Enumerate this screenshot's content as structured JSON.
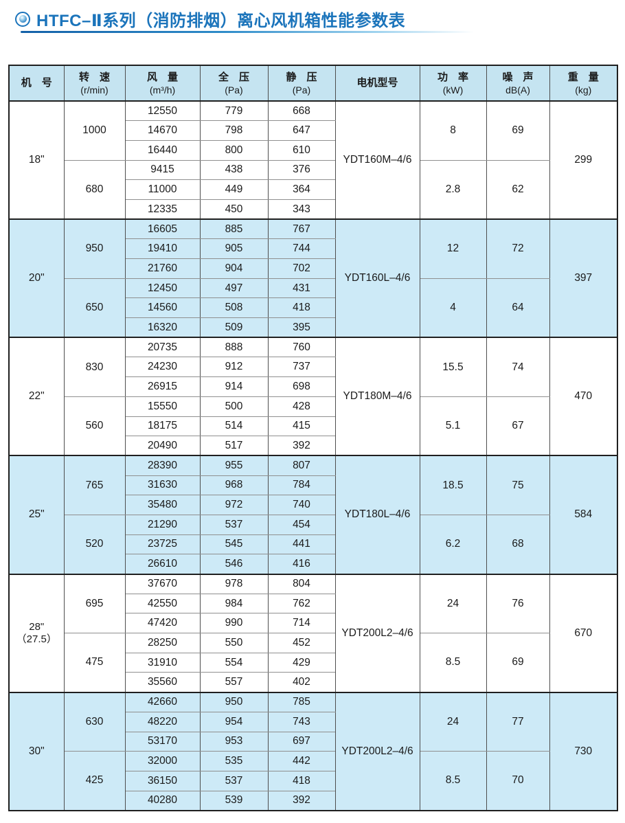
{
  "page": {
    "title": "HTFC–Ⅱ系列（消防排烟）离心风机箱性能参数表",
    "accent_color": "#1b74bb",
    "header_bg": "#c5e4f1",
    "shaded_row_bg": "#cdeaf7"
  },
  "table": {
    "headers": [
      {
        "line1": "机　号",
        "line2": ""
      },
      {
        "line1": "转　速",
        "line2": "(r/min)"
      },
      {
        "line1": "风　量",
        "line2": "(m³/h)"
      },
      {
        "line1": "全　压",
        "line2": "(Pa)"
      },
      {
        "line1": "静　压",
        "line2": "(Pa)"
      },
      {
        "line1": "电机型号",
        "line2": ""
      },
      {
        "line1": "功　率",
        "line2": "(kW)"
      },
      {
        "line1": "噪　声",
        "line2": "dB(A)"
      },
      {
        "line1": "重　量",
        "line2": "(kg)"
      }
    ],
    "sections": [
      {
        "size": "18\"",
        "size_note": "",
        "shaded": false,
        "motor": "YDT160M–4/6",
        "weight": "299",
        "groups": [
          {
            "speed": "1000",
            "power": "8",
            "noise": "69",
            "rows": [
              [
                "12550",
                "779",
                "668"
              ],
              [
                "14670",
                "798",
                "647"
              ],
              [
                "16440",
                "800",
                "610"
              ]
            ]
          },
          {
            "speed": "680",
            "power": "2.8",
            "noise": "62",
            "rows": [
              [
                "9415",
                "438",
                "376"
              ],
              [
                "11000",
                "449",
                "364"
              ],
              [
                "12335",
                "450",
                "343"
              ]
            ]
          }
        ]
      },
      {
        "size": "20\"",
        "size_note": "",
        "shaded": true,
        "motor": "YDT160L–4/6",
        "weight": "397",
        "groups": [
          {
            "speed": "950",
            "power": "12",
            "noise": "72",
            "rows": [
              [
                "16605",
                "885",
                "767"
              ],
              [
                "19410",
                "905",
                "744"
              ],
              [
                "21760",
                "904",
                "702"
              ]
            ]
          },
          {
            "speed": "650",
            "power": "4",
            "noise": "64",
            "rows": [
              [
                "12450",
                "497",
                "431"
              ],
              [
                "14560",
                "508",
                "418"
              ],
              [
                "16320",
                "509",
                "395"
              ]
            ]
          }
        ]
      },
      {
        "size": "22\"",
        "size_note": "",
        "shaded": false,
        "motor": "YDT180M–4/6",
        "weight": "470",
        "groups": [
          {
            "speed": "830",
            "power": "15.5",
            "noise": "74",
            "rows": [
              [
                "20735",
                "888",
                "760"
              ],
              [
                "24230",
                "912",
                "737"
              ],
              [
                "26915",
                "914",
                "698"
              ]
            ]
          },
          {
            "speed": "560",
            "power": "5.1",
            "noise": "67",
            "rows": [
              [
                "15550",
                "500",
                "428"
              ],
              [
                "18175",
                "514",
                "415"
              ],
              [
                "20490",
                "517",
                "392"
              ]
            ]
          }
        ]
      },
      {
        "size": "25\"",
        "size_note": "",
        "shaded": true,
        "motor": "YDT180L–4/6",
        "weight": "584",
        "groups": [
          {
            "speed": "765",
            "power": "18.5",
            "noise": "75",
            "rows": [
              [
                "28390",
                "955",
                "807"
              ],
              [
                "31630",
                "968",
                "784"
              ],
              [
                "35480",
                "972",
                "740"
              ]
            ]
          },
          {
            "speed": "520",
            "power": "6.2",
            "noise": "68",
            "rows": [
              [
                "21290",
                "537",
                "454"
              ],
              [
                "23725",
                "545",
                "441"
              ],
              [
                "26610",
                "546",
                "416"
              ]
            ]
          }
        ]
      },
      {
        "size": "28\"",
        "size_note": "（27.5）",
        "shaded": false,
        "motor": "YDT200L2–4/6",
        "weight": "670",
        "groups": [
          {
            "speed": "695",
            "power": "24",
            "noise": "76",
            "rows": [
              [
                "37670",
                "978",
                "804"
              ],
              [
                "42550",
                "984",
                "762"
              ],
              [
                "47420",
                "990",
                "714"
              ]
            ]
          },
          {
            "speed": "475",
            "power": "8.5",
            "noise": "69",
            "rows": [
              [
                "28250",
                "550",
                "452"
              ],
              [
                "31910",
                "554",
                "429"
              ],
              [
                "35560",
                "557",
                "402"
              ]
            ]
          }
        ]
      },
      {
        "size": "30\"",
        "size_note": "",
        "shaded": true,
        "motor": "YDT200L2–4/6",
        "weight": "730",
        "groups": [
          {
            "speed": "630",
            "power": "24",
            "noise": "77",
            "rows": [
              [
                "42660",
                "950",
                "785"
              ],
              [
                "48220",
                "954",
                "743"
              ],
              [
                "53170",
                "953",
                "697"
              ]
            ]
          },
          {
            "speed": "425",
            "power": "8.5",
            "noise": "70",
            "rows": [
              [
                "32000",
                "535",
                "442"
              ],
              [
                "36150",
                "537",
                "418"
              ],
              [
                "40280",
                "539",
                "392"
              ]
            ]
          }
        ]
      }
    ]
  }
}
